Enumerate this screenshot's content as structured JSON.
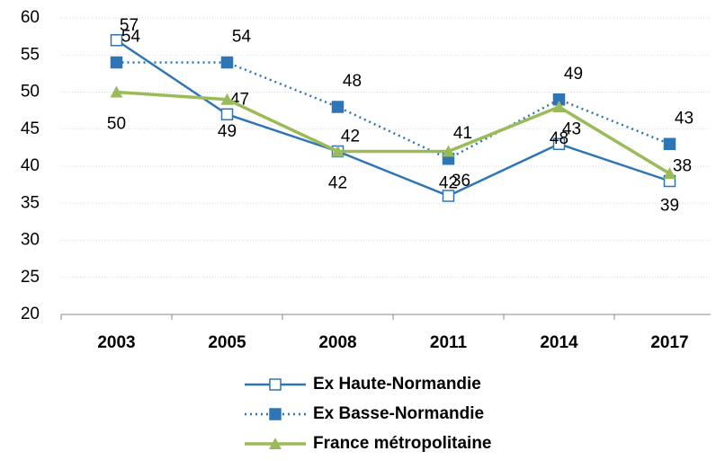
{
  "chart_data": {
    "type": "line",
    "categories": [
      "2003",
      "2005",
      "2008",
      "2011",
      "2014",
      "2017"
    ],
    "series": [
      {
        "name": "Ex Haute-Normandie",
        "color": "#2e75b6",
        "values": [
          57,
          47,
          42,
          36,
          43,
          38
        ]
      },
      {
        "name": "Ex Basse-Normandie",
        "color": "#2e75b6",
        "values": [
          54,
          54,
          48,
          41,
          49,
          43
        ]
      },
      {
        "name": "France métropolitaine",
        "color": "#9bbb59",
        "values": [
          50,
          49,
          42,
          42,
          48,
          39
        ]
      }
    ],
    "ylim": [
      20,
      60
    ],
    "yticks": [
      20,
      25,
      30,
      35,
      40,
      45,
      50,
      55,
      60
    ],
    "grid": true
  }
}
